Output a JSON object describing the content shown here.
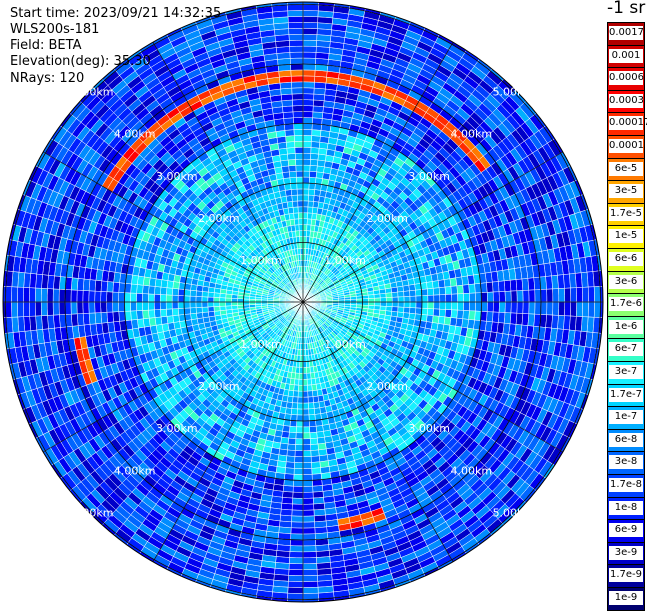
{
  "info": {
    "start_time": "Start time: 2023/09/21 14:32:35",
    "instrument": "WLS200s-181",
    "field": "Field: BETA",
    "elevation": "Elevation(deg): 35.30",
    "nrays": "NRays: 120"
  },
  "colorbar": {
    "unit": "-1 sr",
    "labels": [
      "0.0017",
      "0.001",
      "0.0006",
      "0.0003",
      "0.00017",
      "0.0001",
      "6e-5",
      "3e-5",
      "1.7e-5",
      "1e-5",
      "6e-6",
      "3e-6",
      "1.7e-6",
      "1e-6",
      "6e-7",
      "3e-7",
      "1.7e-7",
      "1e-7",
      "6e-8",
      "3e-8",
      "1.7e-8",
      "1e-8",
      "6e-9",
      "3e-9",
      "1.7e-9",
      "1e-9"
    ],
    "colors": [
      "#b00000",
      "#d00000",
      "#e80000",
      "#ff0000",
      "#ff2a00",
      "#ff4f00",
      "#ff7a00",
      "#ffa500",
      "#ffcf00",
      "#fff000",
      "#e0ff20",
      "#b4ff4a",
      "#8cff70",
      "#5cffa0",
      "#34ffc8",
      "#18f0ff",
      "#00d4ff",
      "#00b0ff",
      "#008cff",
      "#0066ff",
      "#0040ff",
      "#0020ff",
      "#0000f0",
      "#0000c8",
      "#00009c",
      "#000070"
    ]
  },
  "chart_data": {
    "type": "heatmap",
    "projection": "polar (PPI)",
    "field": "BETA",
    "elevation_deg": 35.3,
    "n_rays": 120,
    "range_rings_km": [
      1.0,
      2.0,
      3.0,
      4.0,
      5.0
    ],
    "ring_labels": [
      "1.00km",
      "2.00km",
      "3.00km",
      "4.00km",
      "5.00km"
    ],
    "azimuth_spokes_deg": [
      0,
      30,
      60,
      90,
      120,
      150,
      180,
      210,
      240,
      270,
      300,
      330
    ],
    "colorscale_min": 1e-09,
    "colorscale_max": 0.0017,
    "description_values": {
      "near_range_level": 3e-07,
      "mid_range_level": 1e-07,
      "far_range_level": 1.7e-08,
      "band_range_km": 3.8,
      "band_peak": 0.0001
    }
  }
}
